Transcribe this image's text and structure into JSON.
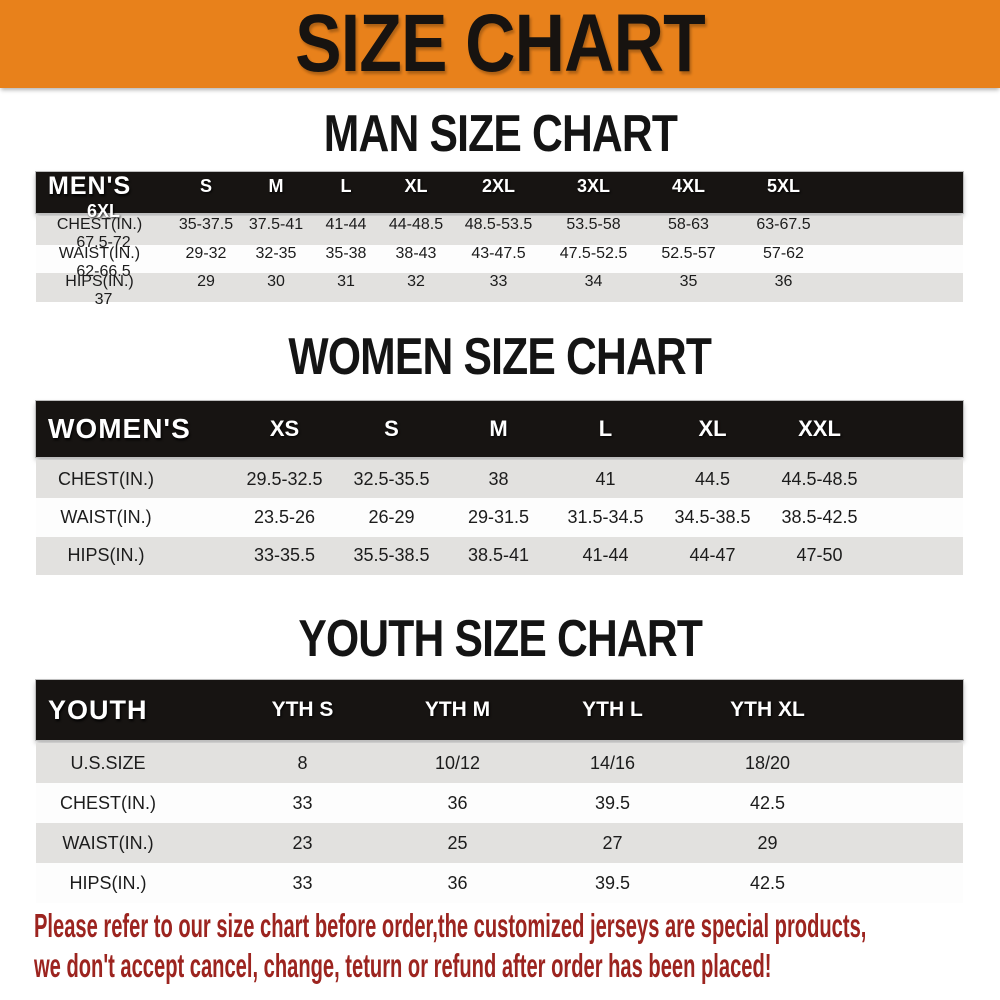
{
  "banner": {
    "title": "SIZE CHART"
  },
  "sections": [
    {
      "id": "men",
      "title": "MAN SIZE CHART",
      "corner_label": "MEN'S",
      "columns": [
        "S",
        "M",
        "L",
        "XL",
        "2XL",
        "3XL",
        "4XL",
        "5XL",
        "6XL"
      ],
      "rows": [
        {
          "label": "CHEST(IN.)",
          "values": [
            "35-37.5",
            "37.5-41",
            "41-44",
            "44-48.5",
            "48.5-53.5",
            "53.5-58",
            "58-63",
            "63-67.5",
            "67.5-72"
          ]
        },
        {
          "label": "WAIST(IN.)",
          "values": [
            "29-32",
            "32-35",
            "35-38",
            "38-43",
            "43-47.5",
            "47.5-52.5",
            "52.5-57",
            "57-62",
            "62-66.5"
          ]
        },
        {
          "label": "HIPS(IN.)",
          "values": [
            "29",
            "30",
            "31",
            "32",
            "33",
            "34",
            "35",
            "36",
            "37"
          ]
        }
      ]
    },
    {
      "id": "women",
      "title": "WOMEN SIZE CHART",
      "corner_label": "WOMEN'S",
      "columns": [
        "XS",
        "S",
        "M",
        "L",
        "XL",
        "XXL"
      ],
      "rows": [
        {
          "label": "CHEST(IN.)",
          "values": [
            "29.5-32.5",
            "32.5-35.5",
            "38",
            "41",
            "44.5",
            "44.5-48.5"
          ]
        },
        {
          "label": "WAIST(IN.)",
          "values": [
            "23.5-26",
            "26-29",
            "29-31.5",
            "31.5-34.5",
            "34.5-38.5",
            "38.5-42.5"
          ]
        },
        {
          "label": "HIPS(IN.)",
          "values": [
            "33-35.5",
            "35.5-38.5",
            "38.5-41",
            "41-44",
            "44-47",
            "47-50"
          ]
        }
      ]
    },
    {
      "id": "youth",
      "title": "YOUTH SIZE CHART",
      "corner_label": "YOUTH",
      "columns": [
        "YTH S",
        "YTH M",
        "YTH L",
        "YTH XL"
      ],
      "rows": [
        {
          "label": "U.S.SIZE",
          "values": [
            "8",
            "10/12",
            "14/16",
            "18/20"
          ]
        },
        {
          "label": "CHEST(IN.)",
          "values": [
            "33",
            "36",
            "39.5",
            "42.5"
          ]
        },
        {
          "label": "WAIST(IN.)",
          "values": [
            "23",
            "25",
            "27",
            "29"
          ]
        },
        {
          "label": "HIPS(IN.)",
          "values": [
            "33",
            "36",
            "39.5",
            "42.5"
          ]
        }
      ]
    }
  ],
  "footer": {
    "line1": "Please refer to our size chart before order,the customized jerseys are special products,",
    "line2": "we don't accept cancel, change, teturn or refund after order has been placed!"
  },
  "colors": {
    "banner_orange": "#E8811B",
    "header_black": "#171412",
    "row_gray": "#E2E1DF",
    "row_white": "#FDFDFD",
    "footer_red": "#9C241F"
  }
}
